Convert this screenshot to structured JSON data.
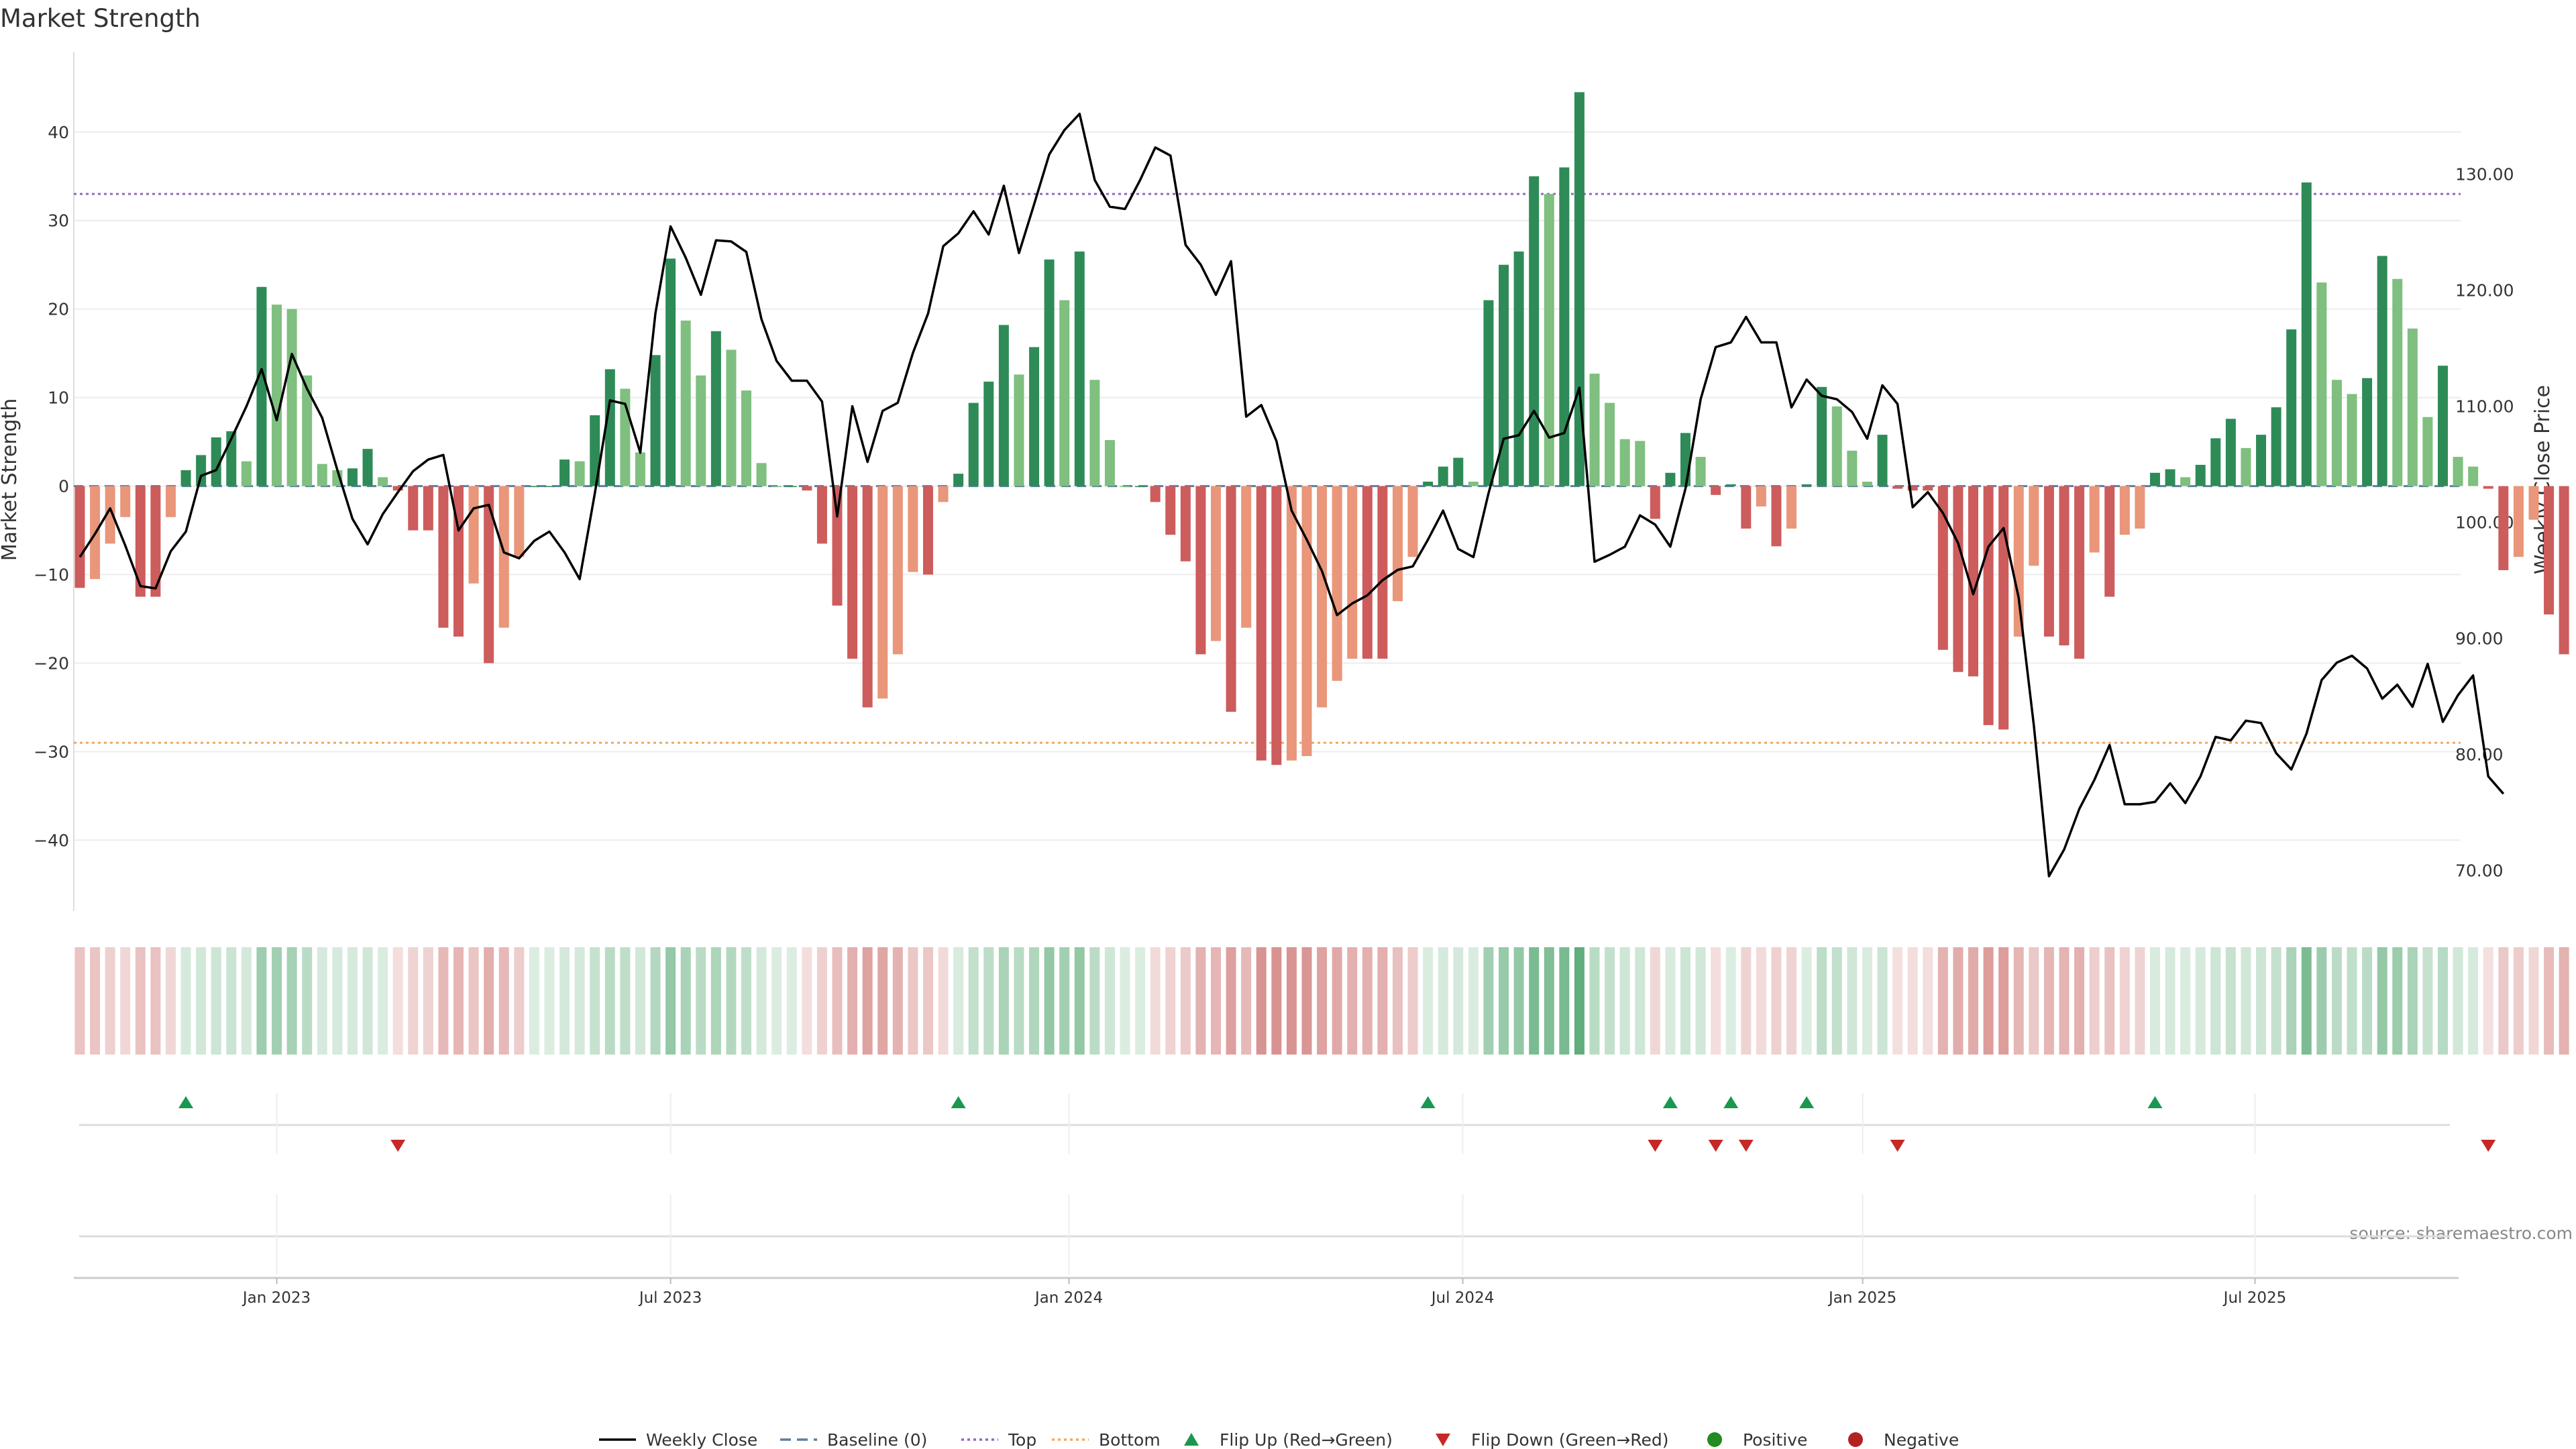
{
  "colors": {
    "strong_pos": "#2e8b57",
    "weak_pos": "#7fbf7f",
    "strong_neg": "#cd5c5c",
    "weak_neg": "#e9967a",
    "line": "#000000",
    "top": "#9467bd",
    "bottom": "#f0a860",
    "baseline": "#5a7fa0",
    "flip_up": "#1a9850",
    "flip_down": "#c62828",
    "positive": "#228b22",
    "negative": "#b22222"
  },
  "chart_data": {
    "type": "bar",
    "title": "Market Strength",
    "ylabel_left": "Market Strength",
    "ylabel_right": "Weekly Close Price",
    "source": "source: sharemaestro.com",
    "ylim_left": [
      -48,
      49
    ],
    "ylim_right": [
      66.5,
      140.5
    ],
    "left_ticks": [
      40,
      30,
      20,
      10,
      0,
      -10,
      -20,
      -30,
      -40
    ],
    "left_tick_labels": [
      "40",
      "30",
      "20",
      "10",
      "0",
      "−10",
      "−20",
      "−30",
      "−40"
    ],
    "right_ticks": [
      130,
      120,
      110,
      100,
      90,
      80,
      70
    ],
    "right_tick_labels": [
      "130.00",
      "120.00",
      "110.00",
      "100.00",
      "90.00",
      "80.00",
      "70.00"
    ],
    "top_threshold": 33,
    "bottom_threshold": -29,
    "start_week": "2022-10-03",
    "date_ticks": [
      {
        "label": "Jan 2023",
        "week": 13
      },
      {
        "label": "Jul 2023",
        "week": 39
      },
      {
        "label": "Jan 2024",
        "week": 65.3
      },
      {
        "label": "Jul 2024",
        "week": 91.3
      },
      {
        "label": "Jan 2025",
        "week": 117.7
      },
      {
        "label": "Jul 2025",
        "week": 143.6
      }
    ],
    "strength": [
      -11.5,
      -10.5,
      -6.5,
      -3.5,
      -12.5,
      -12.5,
      -3.5,
      1.8,
      3.5,
      5.5,
      6.2,
      2.8,
      22.5,
      20.5,
      20,
      12.5,
      2.5,
      1.8,
      2,
      4.2,
      1,
      -0.5,
      -5,
      -5,
      -16,
      -17,
      -11,
      -20,
      -16,
      -8,
      0,
      0,
      3,
      2.8,
      8,
      13.2,
      11,
      3.8,
      14.8,
      25.7,
      18.7,
      12.5,
      17.5,
      15.4,
      10.8,
      2.6,
      0,
      0,
      -0.5,
      -6.5,
      -13.5,
      -19.5,
      -25,
      -24,
      -19,
      -9.7,
      -10,
      -1.8,
      1.4,
      9.4,
      11.8,
      18.2,
      12.6,
      15.7,
      25.6,
      21,
      26.5,
      12,
      5.2,
      0,
      0,
      -1.8,
      -5.5,
      -8.5,
      -19,
      -17.5,
      -25.5,
      -16,
      -31,
      -31.5,
      -31,
      -30.5,
      -25,
      -22,
      -19.5,
      -19.5,
      -19.5,
      -13,
      -8,
      0.5,
      2.2,
      3.2,
      0.5,
      21,
      25,
      26.5,
      35,
      33,
      36,
      44.5,
      12.7,
      9.4,
      5.3,
      5.1,
      -3.7,
      1.5,
      6,
      3.3,
      -1,
      0.2,
      -4.8,
      -2.3,
      -6.8,
      -4.8,
      0.2,
      11.2,
      9,
      4,
      0.5,
      5.8,
      -0.3,
      -0.5,
      -0.5,
      -18.5,
      -21,
      -21.5,
      -27,
      -27.5,
      -17,
      -9,
      -17,
      -18,
      -19.5,
      -7.5,
      -12.5,
      -5.5,
      -4.8,
      1.5,
      1.9,
      1,
      2.4,
      5.4,
      7.6,
      4.3,
      5.8,
      8.9,
      17.7,
      34.3,
      23,
      12,
      10.4,
      12.2,
      26,
      23.4,
      17.8,
      7.8,
      13.6,
      3.3,
      2.2,
      -0.3,
      -9.5,
      -8,
      -3.8,
      -14.5,
      -19
    ],
    "weekly_close": [
      97,
      99,
      101.2,
      98,
      94.5,
      94.3,
      97.5,
      99.2,
      104,
      104.5,
      107.2,
      110,
      113.2,
      108.8,
      114.5,
      111.5,
      109,
      104.5,
      100.3,
      98.1,
      100.7,
      102.6,
      104.4,
      105.4,
      105.8,
      99.3,
      101.2,
      101.5,
      97.4,
      96.9,
      98.4,
      99.2,
      97.4,
      95.1,
      102.5,
      110.5,
      110.2,
      106,
      118,
      125.5,
      122.8,
      119.6,
      124.3,
      124.2,
      123.3,
      117.5,
      113.9,
      112.2,
      112.2,
      110.4,
      100.5,
      110,
      105.2,
      109.6,
      110.3,
      114.6,
      118,
      123.8,
      124.9,
      126.8,
      124.8,
      129,
      123.2,
      127.4,
      131.7,
      133.8,
      135.2,
      129.5,
      127.2,
      127,
      129.5,
      132.3,
      131.6,
      123.9,
      122.2,
      119.6,
      122.5,
      109.1,
      110.1,
      107,
      101,
      98.5,
      95.8,
      92,
      93,
      93.7,
      95,
      95.9,
      96.2,
      98.5,
      101,
      97.7,
      97,
      102.5,
      107.2,
      107.5,
      109.6,
      107.3,
      107.7,
      111.6,
      96.6,
      97.2,
      97.9,
      100.6,
      99.8,
      97.9,
      102.9,
      110.6,
      115.1,
      115.5,
      117.7,
      115.5,
      115.5,
      109.9,
      112.3,
      110.9,
      110.6,
      109.5,
      107.2,
      111.8,
      110.2,
      101.3,
      102.6,
      100.8,
      98.2,
      93.8,
      97.9,
      99.5,
      93.5,
      82.5,
      69.5,
      71.8,
      75.3,
      77.8,
      80.8,
      75.7,
      75.7,
      75.9,
      77.5,
      75.8,
      78.1,
      81.5,
      81.2,
      82.9,
      82.7,
      80.1,
      78.7,
      81.8,
      86.4,
      87.9,
      88.5,
      87.4,
      84.8,
      86,
      84.1,
      87.8,
      82.8,
      85.1,
      86.8,
      78.1,
      76.6
    ]
  },
  "legend": [
    {
      "key": "line",
      "label": "Weekly Close"
    },
    {
      "key": "baseline",
      "label": "Baseline (0)"
    },
    {
      "key": "top",
      "label": "Top"
    },
    {
      "key": "bottom",
      "label": "Bottom"
    },
    {
      "key": "flip_up",
      "label": "Flip Up (Red→Green)"
    },
    {
      "key": "flip_down",
      "label": "Flip Down (Green→Red)"
    },
    {
      "key": "positive",
      "label": "Positive"
    },
    {
      "key": "negative",
      "label": "Negative"
    }
  ]
}
